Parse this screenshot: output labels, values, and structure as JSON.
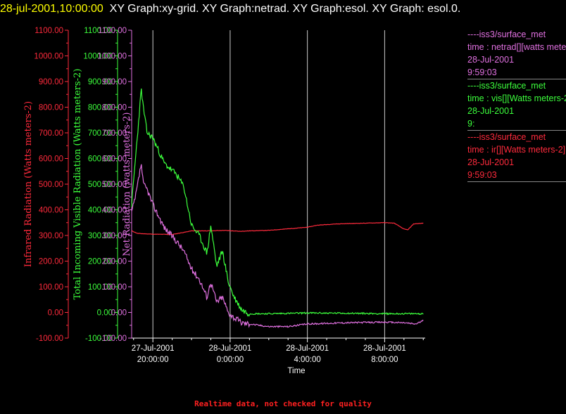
{
  "title": {
    "timestamp": "28-jul-2001,10:00:00",
    "text": "XY Graph:xy-grid.  XY Graph:netrad.  XY Graph:esol.  XY Graph: esol.0."
  },
  "footer": "Realtime data, not checked for quality",
  "axes": {
    "infrared": {
      "label": "Infrared Radiation (Watts meters-2)",
      "ticks": [
        "1100.00",
        "1000.00",
        "900.00",
        "800.00",
        "700.00",
        "600.00",
        "500.00",
        "400.00",
        "300.00",
        "200.00",
        "100.00",
        "0.00",
        "-100.00"
      ],
      "color": "#ff2a3c"
    },
    "visible": {
      "label": "Total Incoming Visible Radiation (Watts meters-2)",
      "ticks": [
        "1100.00",
        "1000.00",
        "900.00",
        "800.00",
        "700.00",
        "600.00",
        "500.00",
        "400.00",
        "300.00",
        "200.00",
        "100.00",
        "0.00",
        "-100.00"
      ],
      "color": "#3cff3c"
    },
    "net": {
      "label": "Net Radiation (watts meters-2)",
      "ticks": [
        "1100.00",
        "1000.00",
        "900.00",
        "800.00",
        "700.00",
        "600.00",
        "500.00",
        "400.00",
        "300.00",
        "200.00",
        "100.00",
        "0.00",
        "-100.00"
      ],
      "color": "#e070e0"
    },
    "x": {
      "label": "Time",
      "ticks": [
        {
          "date": "27-Jul-2001",
          "time": "20:00:00"
        },
        {
          "date": "28-Jul-2001",
          "time": "0:00:00"
        },
        {
          "date": "28-Jul-2001",
          "time": "4:00:00"
        },
        {
          "date": "28-Jul-2001",
          "time": "8:00:00"
        }
      ]
    }
  },
  "legend": [
    {
      "source": "----iss3/surface_met",
      "lines": [
        "time : netrad[][watts meters-2]",
        "28-Jul-2001",
        "9:59:03"
      ],
      "color": "#e070e0"
    },
    {
      "source": "----iss3/surface_met",
      "lines": [
        "time : vis[][Watts meters-2]",
        "28-Jul-2001",
        "9:"
      ],
      "color": "#3cff3c"
    },
    {
      "source": "----iss3/surface_met",
      "lines": [
        "time : ir[][Watts meters-2]",
        "28-Jul-2001",
        "9:59:03"
      ],
      "color": "#ff2a3c"
    }
  ],
  "chart_data": {
    "type": "line",
    "x_unit": "hours since 27-Jul-2001 20:00:00",
    "xlim": [
      -1.1,
      14.1
    ],
    "ylim": [
      -100,
      1100
    ],
    "grid": "vertical",
    "series": [
      {
        "name": "time : ir[][Watts meters-2]",
        "color": "#ff2a3c",
        "noise": 3,
        "seed": 11,
        "x": [
          -1.1,
          -0.8,
          0,
          1,
          1.6,
          2,
          3,
          3.7,
          4.5,
          5,
          6,
          7,
          8,
          8.5,
          9.5,
          10,
          11,
          12,
          12.5,
          13,
          13.2,
          13.5,
          14
        ],
        "y": [
          318,
          308,
          305,
          304,
          312,
          318,
          318,
          320,
          316,
          318,
          320,
          326,
          332,
          340,
          345,
          346,
          348,
          350,
          348,
          325,
          322,
          345,
          348
        ]
      },
      {
        "name": "time : vis[][Watts meters-2]",
        "color": "#3cff3c",
        "noise": 12,
        "seed": 23,
        "x": [
          -1.1,
          -0.9,
          -0.6,
          -0.5,
          -0.3,
          0,
          0.6,
          1.2,
          1.6,
          2,
          2.4,
          2.8,
          3,
          3.3,
          3.6,
          3.9,
          4.2,
          4.6,
          5,
          6,
          8,
          10,
          12,
          14
        ],
        "y": [
          420,
          600,
          870,
          800,
          700,
          680,
          580,
          540,
          490,
          340,
          300,
          230,
          340,
          180,
          240,
          120,
          60,
          10,
          -5,
          -5,
          -2,
          -3,
          -5,
          -5
        ]
      },
      {
        "name": "time : netrad[][watts meters-2]",
        "color": "#e070e0",
        "noise": 12,
        "seed": 37,
        "x": [
          -1.1,
          -0.9,
          -0.6,
          -0.5,
          -0.3,
          0,
          0.6,
          1.2,
          1.6,
          2,
          2.4,
          2.8,
          3,
          3.3,
          3.6,
          3.9,
          4.2,
          4.6,
          5,
          6,
          7,
          8,
          10,
          12,
          13,
          13.6,
          14
        ],
        "y": [
          390,
          450,
          580,
          500,
          480,
          420,
          330,
          280,
          240,
          170,
          130,
          60,
          120,
          40,
          60,
          0,
          -20,
          -40,
          -45,
          -55,
          -55,
          -45,
          -40,
          -38,
          -40,
          -45,
          -32
        ]
      }
    ]
  }
}
